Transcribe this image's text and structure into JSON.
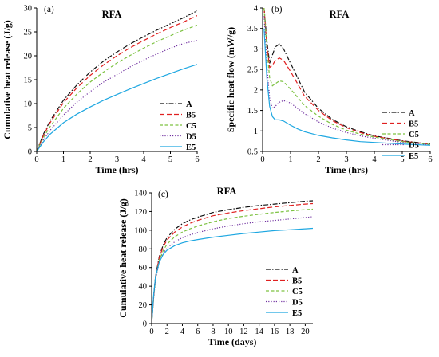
{
  "chart_data": [
    {
      "type": "line",
      "panel_label": "(a)",
      "title": "RFA",
      "xlabel": "Time (hrs)",
      "ylabel": "Cumulative heat release (J/g)",
      "xlim": [
        0,
        6
      ],
      "ylim": [
        0,
        30
      ],
      "xticks": [
        "0",
        "1",
        "2",
        "3",
        "4",
        "5",
        "6"
      ],
      "yticks": [
        "0",
        "5",
        "10",
        "15",
        "20",
        "25",
        "30"
      ],
      "legend": "bottom-right",
      "series": [
        {
          "name": "A",
          "color": "#111111",
          "dash": "dashdot",
          "x": [
            0,
            0.25,
            0.5,
            1,
            1.5,
            2,
            2.5,
            3,
            3.5,
            4,
            4.5,
            5,
            5.5,
            6
          ],
          "y": [
            0,
            3.6,
            6.4,
            10.7,
            13.9,
            16.6,
            18.9,
            20.8,
            22.5,
            24.0,
            25.4,
            26.7,
            28.0,
            29.4
          ]
        },
        {
          "name": "B5",
          "color": "#e02020",
          "dash": "dash",
          "x": [
            0,
            0.25,
            0.5,
            1,
            1.5,
            2,
            2.5,
            3,
            3.5,
            4,
            4.5,
            5,
            5.5,
            6
          ],
          "y": [
            0,
            3.3,
            6.0,
            10.2,
            13.3,
            15.9,
            18.1,
            20.0,
            21.7,
            23.2,
            24.6,
            25.9,
            27.1,
            28.4
          ]
        },
        {
          "name": "C5",
          "color": "#7dc242",
          "dash": "dash-small",
          "x": [
            0,
            0.25,
            0.5,
            1,
            1.5,
            2,
            2.5,
            3,
            3.5,
            4,
            4.5,
            5,
            5.5,
            6
          ],
          "y": [
            0,
            2.9,
            5.2,
            9.0,
            12.0,
            14.5,
            16.6,
            18.5,
            20.1,
            21.6,
            23.0,
            24.2,
            25.4,
            26.4
          ]
        },
        {
          "name": "D5",
          "color": "#7030a0",
          "dash": "dot",
          "x": [
            0,
            0.25,
            0.5,
            1,
            1.5,
            2,
            2.5,
            3,
            3.5,
            4,
            4.5,
            5,
            5.5,
            6
          ],
          "y": [
            0,
            2.4,
            4.4,
            7.6,
            10.3,
            12.5,
            14.5,
            16.1,
            17.7,
            19.1,
            20.4,
            21.6,
            22.6,
            23.2
          ]
        },
        {
          "name": "E5",
          "color": "#1ea7e1",
          "dash": "solid",
          "x": [
            0,
            0.25,
            0.5,
            1,
            1.5,
            2,
            2.5,
            3,
            3.5,
            4,
            4.5,
            5,
            5.5,
            6
          ],
          "y": [
            0,
            2.0,
            3.6,
            6.0,
            7.8,
            9.3,
            10.7,
            11.9,
            13.1,
            14.2,
            15.3,
            16.3,
            17.3,
            18.2
          ]
        }
      ]
    },
    {
      "type": "line",
      "panel_label": "(b)",
      "title": "RFA",
      "xlabel": "Time (hrs)",
      "ylabel": "Specific heat flow (mW/g)",
      "xlim": [
        0,
        6
      ],
      "ylim": [
        0.5,
        4
      ],
      "xticks": [
        "0",
        "1",
        "2",
        "3",
        "4",
        "5",
        "6"
      ],
      "yticks": [
        "0.5",
        "1",
        "1.5",
        "2",
        "2.5",
        "3",
        "3.5",
        "4"
      ],
      "legend": "right",
      "series": [
        {
          "name": "A",
          "color": "#111111",
          "dash": "dashdot",
          "x": [
            0.05,
            0.15,
            0.25,
            0.35,
            0.45,
            0.6,
            0.75,
            1,
            1.25,
            1.5,
            2,
            2.5,
            3,
            3.5,
            4,
            5,
            6
          ],
          "y": [
            4.0,
            3.2,
            2.65,
            2.85,
            3.05,
            3.12,
            3.0,
            2.65,
            2.3,
            1.95,
            1.55,
            1.28,
            1.1,
            0.98,
            0.88,
            0.76,
            0.68
          ]
        },
        {
          "name": "B5",
          "color": "#e02020",
          "dash": "dash",
          "x": [
            0.05,
            0.15,
            0.25,
            0.35,
            0.45,
            0.6,
            0.75,
            1,
            1.25,
            1.5,
            2,
            2.5,
            3,
            3.5,
            4,
            5,
            6
          ],
          "y": [
            4.0,
            3.1,
            2.55,
            2.6,
            2.72,
            2.78,
            2.72,
            2.45,
            2.15,
            1.85,
            1.5,
            1.25,
            1.08,
            0.96,
            0.87,
            0.75,
            0.68
          ]
        },
        {
          "name": "C5",
          "color": "#7dc242",
          "dash": "dash-small",
          "x": [
            0.05,
            0.15,
            0.25,
            0.35,
            0.45,
            0.6,
            0.75,
            1,
            1.25,
            1.5,
            2,
            2.5,
            3,
            3.5,
            4,
            5,
            6
          ],
          "y": [
            4.0,
            3.0,
            2.3,
            2.1,
            2.15,
            2.22,
            2.2,
            2.02,
            1.82,
            1.62,
            1.36,
            1.16,
            1.02,
            0.92,
            0.85,
            0.74,
            0.67
          ]
        },
        {
          "name": "D5",
          "color": "#7030a0",
          "dash": "dot",
          "x": [
            0.05,
            0.15,
            0.25,
            0.35,
            0.45,
            0.6,
            0.75,
            1,
            1.25,
            1.5,
            2,
            2.5,
            3,
            3.5,
            4,
            5,
            6
          ],
          "y": [
            3.8,
            2.6,
            1.8,
            1.55,
            1.6,
            1.7,
            1.74,
            1.68,
            1.55,
            1.42,
            1.22,
            1.07,
            0.96,
            0.88,
            0.82,
            0.72,
            0.66
          ]
        },
        {
          "name": "E5",
          "color": "#1ea7e1",
          "dash": "solid",
          "x": [
            0.05,
            0.15,
            0.25,
            0.35,
            0.45,
            0.6,
            0.75,
            1,
            1.25,
            1.5,
            2,
            2.5,
            3,
            3.5,
            4,
            5,
            6
          ],
          "y": [
            3.5,
            2.3,
            1.6,
            1.35,
            1.27,
            1.27,
            1.24,
            1.14,
            1.05,
            0.98,
            0.89,
            0.83,
            0.78,
            0.74,
            0.72,
            0.68,
            0.65
          ]
        }
      ]
    },
    {
      "type": "line",
      "panel_label": "(c)",
      "title": "RFA",
      "xlabel": "Time (days)",
      "ylabel": "Cumulative heat release (J/g)",
      "xlim": [
        0,
        21
      ],
      "ylim": [
        0,
        140
      ],
      "xticks": [
        "0",
        "2",
        "4",
        "6",
        "8",
        "10",
        "12",
        "14",
        "16",
        "18",
        "20"
      ],
      "yticks": [
        "0",
        "20",
        "40",
        "60",
        "80",
        "100",
        "120",
        "140"
      ],
      "legend": "right",
      "series": [
        {
          "name": "A",
          "color": "#111111",
          "dash": "dashdot",
          "x": [
            0,
            0.25,
            0.5,
            1,
            1.5,
            2,
            3,
            4,
            5,
            6,
            8,
            10,
            12,
            14,
            16,
            18,
            20,
            21
          ],
          "y": [
            0,
            28,
            50,
            72,
            84,
            92,
            101,
            107,
            111,
            114,
            119,
            122,
            124.5,
            126.5,
            128,
            129.5,
            131,
            131.5
          ]
        },
        {
          "name": "B5",
          "color": "#e02020",
          "dash": "dash",
          "x": [
            0,
            0.25,
            0.5,
            1,
            1.5,
            2,
            3,
            4,
            5,
            6,
            8,
            10,
            12,
            14,
            16,
            18,
            20,
            21
          ],
          "y": [
            0,
            28,
            50,
            71,
            82,
            89.5,
            98,
            103.5,
            107.5,
            110.5,
            115.5,
            118.5,
            121,
            123,
            125,
            126.5,
            128,
            128.5
          ]
        },
        {
          "name": "C5",
          "color": "#7dc242",
          "dash": "dash-small",
          "x": [
            0,
            0.25,
            0.5,
            1,
            1.5,
            2,
            3,
            4,
            5,
            6,
            8,
            10,
            12,
            14,
            16,
            18,
            20,
            21
          ],
          "y": [
            0,
            27,
            48,
            68,
            78,
            85,
            93,
            98,
            101.5,
            104.5,
            109,
            112.5,
            115,
            117,
            119,
            120.5,
            122,
            122.5
          ]
        },
        {
          "name": "D5",
          "color": "#7030a0",
          "dash": "dot",
          "x": [
            0,
            0.25,
            0.5,
            1,
            1.5,
            2,
            3,
            4,
            5,
            6,
            8,
            10,
            12,
            14,
            16,
            18,
            20,
            21
          ],
          "y": [
            0,
            27,
            47,
            66,
            75,
            81,
            87.5,
            92,
            95,
            97.5,
            101.5,
            104.5,
            107,
            109,
            110.5,
            112,
            113.5,
            114.5
          ]
        },
        {
          "name": "E5",
          "color": "#1ea7e1",
          "dash": "solid",
          "x": [
            0,
            0.25,
            0.5,
            1,
            1.5,
            2,
            3,
            4,
            5,
            6,
            8,
            10,
            12,
            14,
            16,
            18,
            20,
            21
          ],
          "y": [
            0,
            30,
            50,
            66,
            74,
            78.5,
            83.5,
            86.5,
            88.5,
            90,
            92.5,
            94.5,
            96.5,
            98,
            99.5,
            100.5,
            101.5,
            102
          ]
        }
      ]
    }
  ]
}
